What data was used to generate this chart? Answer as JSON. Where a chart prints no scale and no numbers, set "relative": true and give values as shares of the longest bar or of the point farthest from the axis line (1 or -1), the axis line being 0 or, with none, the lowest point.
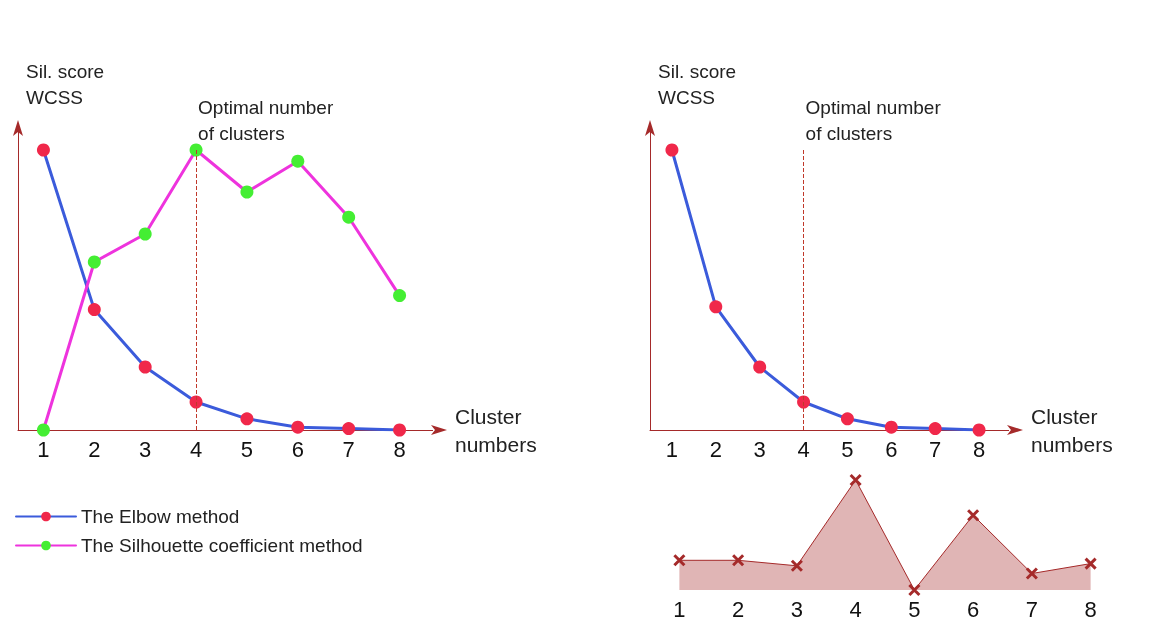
{
  "chart_data": [
    {
      "type": "line",
      "relative": true,
      "xlabel": "Cluster numbers",
      "ylabel": "Sil. score\nWCSS",
      "categories": [
        "1",
        "2",
        "3",
        "4",
        "5",
        "6",
        "7",
        "8"
      ],
      "marker": "circle",
      "legend": "bottom",
      "series": [
        {
          "name": "The Elbow method",
          "color": "#3b5bdb",
          "colors": [
            "#f0284a",
            "#f0284a",
            "#f0284a",
            "#f0284a",
            "#f0284a",
            "#f0284a",
            "#f0284a",
            "#f0284a"
          ],
          "values": [
            1.0,
            0.43,
            0.225,
            0.1,
            0.04,
            0.01,
            0.005,
            0
          ]
        },
        {
          "name": "The Silhouette coefficient method",
          "color": "#ee33dd",
          "colors": [
            "#44ee33",
            "#44ee33",
            "#44ee33",
            "#44ee33",
            "#44ee33",
            "#44ee33",
            "#44ee33",
            "#44ee33"
          ],
          "values": [
            0,
            0.6,
            0.7,
            1.0,
            0.85,
            0.96,
            0.76,
            0.48
          ]
        }
      ],
      "ref_lines": [
        {
          "axis": "x",
          "value": "4",
          "label": "Optimal number\nof clusters",
          "color": "#c0392b",
          "line_style": "dashed"
        }
      ]
    },
    {
      "type": "line",
      "relative": true,
      "xlabel": "Cluster numbers",
      "ylabel": "Sil. score\nWCSS",
      "categories": [
        "1",
        "2",
        "3",
        "4",
        "5",
        "6",
        "7",
        "8"
      ],
      "marker": "circle",
      "series": [
        {
          "color": "#3b5bdb",
          "colors": [
            "#f0284a",
            "#f0284a",
            "#f0284a",
            "#f0284a",
            "#f0284a",
            "#f0284a",
            "#f0284a",
            "#f0284a"
          ],
          "values": [
            1.0,
            0.44,
            0.225,
            0.1,
            0.04,
            0.01,
            0.005,
            0
          ]
        }
      ],
      "ref_lines": [
        {
          "axis": "x",
          "value": "4",
          "label": "Optimal number\nof clusters",
          "color": "#c0392b",
          "line_style": "dashed"
        }
      ]
    },
    {
      "type": "area",
      "relative": true,
      "categories": [
        "1",
        "2",
        "3",
        "4",
        "5",
        "6",
        "7",
        "8"
      ],
      "marker": "cross",
      "color": "#a52a2a",
      "values": [
        0.27,
        0.27,
        0.22,
        1.0,
        0,
        0.68,
        0.15,
        0.24
      ]
    }
  ]
}
